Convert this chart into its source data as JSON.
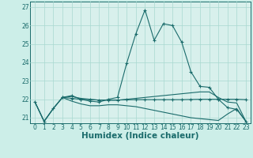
{
  "xlabel": "Humidex (Indice chaleur)",
  "ylabel": "",
  "xlim": [
    -0.5,
    23.5
  ],
  "ylim": [
    20.7,
    27.3
  ],
  "background_color": "#cceee8",
  "plot_bg_color": "#d8f0ec",
  "grid_color": "#a8d8d0",
  "line_color": "#1a6b6b",
  "lines": [
    {
      "x": [
        0,
        1,
        2,
        3,
        4,
        5,
        6,
        7,
        8,
        9,
        10,
        11,
        12,
        13,
        14,
        15,
        16,
        17,
        18,
        19,
        20,
        21,
        22,
        23
      ],
      "y": [
        21.85,
        20.8,
        21.5,
        22.1,
        22.2,
        22.0,
        21.9,
        21.85,
        22.0,
        22.1,
        23.95,
        25.55,
        26.85,
        25.2,
        26.1,
        26.0,
        25.1,
        23.5,
        22.7,
        22.65,
        22.0,
        21.55,
        21.45,
        20.8
      ],
      "marker": true
    },
    {
      "x": [
        0,
        1,
        2,
        3,
        4,
        5,
        6,
        7,
        8,
        9,
        10,
        11,
        12,
        13,
        14,
        15,
        16,
        17,
        18,
        19,
        20,
        21,
        22,
        23
      ],
      "y": [
        21.85,
        20.8,
        21.5,
        22.1,
        22.15,
        22.05,
        22.0,
        21.95,
        21.95,
        21.95,
        22.0,
        22.05,
        22.1,
        22.15,
        22.2,
        22.25,
        22.3,
        22.35,
        22.4,
        22.4,
        22.1,
        21.85,
        21.8,
        20.8
      ],
      "marker": false
    },
    {
      "x": [
        0,
        1,
        2,
        3,
        4,
        5,
        6,
        7,
        8,
        9,
        10,
        11,
        12,
        13,
        14,
        15,
        16,
        17,
        18,
        19,
        20,
        21,
        22,
        23
      ],
      "y": [
        21.85,
        20.8,
        21.5,
        22.1,
        21.9,
        21.75,
        21.65,
        21.65,
        21.7,
        21.7,
        21.65,
        21.6,
        21.5,
        21.4,
        21.3,
        21.2,
        21.1,
        21.0,
        20.95,
        20.9,
        20.85,
        21.2,
        21.5,
        20.8
      ],
      "marker": false
    },
    {
      "x": [
        3,
        4,
        5,
        6,
        7,
        8,
        9,
        10,
        11,
        12,
        13,
        14,
        15,
        16,
        17,
        18,
        19,
        20,
        21,
        22,
        23
      ],
      "y": [
        22.1,
        22.05,
        22.0,
        21.98,
        21.96,
        21.96,
        21.96,
        21.97,
        21.98,
        21.98,
        21.98,
        21.98,
        21.98,
        21.98,
        21.99,
        22.0,
        22.0,
        22.0,
        22.0,
        22.0,
        21.98
      ],
      "marker": true
    }
  ],
  "yticks": [
    21,
    22,
    23,
    24,
    25,
    26,
    27
  ],
  "xticks": [
    0,
    1,
    2,
    3,
    4,
    5,
    6,
    7,
    8,
    9,
    10,
    11,
    12,
    13,
    14,
    15,
    16,
    17,
    18,
    19,
    20,
    21,
    22,
    23
  ],
  "tick_fontsize": 5.5,
  "xlabel_fontsize": 7.5,
  "tick_color": "#1a6b6b",
  "spine_color": "#1a6b6b"
}
